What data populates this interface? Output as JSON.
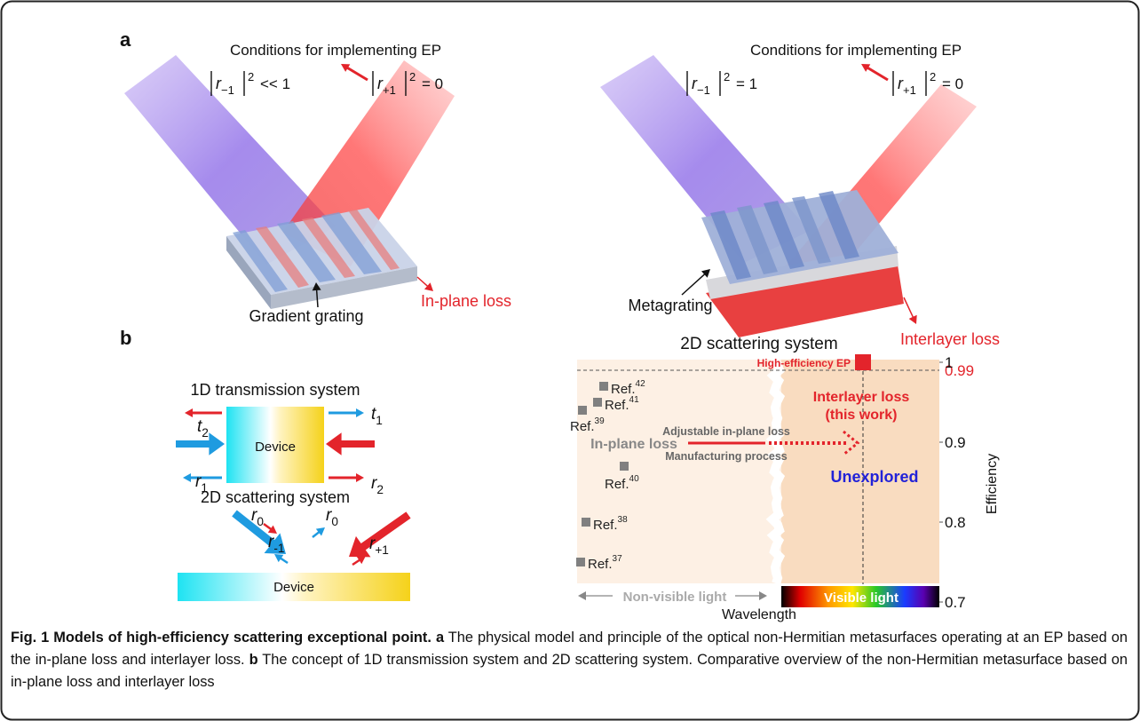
{
  "panel_a": {
    "label": "a",
    "left": {
      "heading": "Conditions for implementing EP",
      "formula_left": {
        "r": "r",
        "sub": "−1",
        "sup": "2",
        "rel": "<< 1"
      },
      "formula_right": {
        "r": "r",
        "sub": "+1",
        "sup": "2",
        "rel": "= 0"
      },
      "grating_label": "Gradient grating",
      "loss_label": "In-plane loss"
    },
    "right": {
      "heading": "Conditions for implementing EP",
      "formula_left": {
        "r": "r",
        "sub": "−1",
        "sup": "2",
        "rel": "= 1"
      },
      "formula_right": {
        "r": "r",
        "sub": "+1",
        "sup": "2",
        "rel": "= 0"
      },
      "grating_label": "Metagrating",
      "loss_label": "Interlayer loss"
    }
  },
  "panel_b": {
    "label": "b",
    "transmission": {
      "title": "1D transmission system",
      "device": "Device",
      "t2": {
        "sym": "t",
        "sub": "2"
      },
      "t1": {
        "sym": "t",
        "sub": "1"
      },
      "r1": {
        "sym": "r",
        "sub": "1"
      },
      "r2": {
        "sym": "r",
        "sub": "2"
      }
    },
    "scattering": {
      "title": "2D scattering system",
      "device": "Device",
      "r0_left": {
        "sym": "r",
        "sub": "0"
      },
      "r0_right": {
        "sym": "r",
        "sub": "0"
      },
      "r_minus": {
        "sym": "r",
        "sub": "-1"
      },
      "r_plus": {
        "sym": "r",
        "sub": "+1"
      }
    }
  },
  "chart_data": {
    "type": "scatter",
    "title": "2D scattering system",
    "y_label": "Efficiency",
    "x_label": "Wavelength",
    "ylim": [
      0.7,
      1
    ],
    "yticks": [
      0.7,
      0.8,
      0.9,
      1
    ],
    "reference_line": 0.99,
    "reference_color": "#e3242b",
    "point_color": "#808080",
    "points": [
      {
        "label": "Ref.",
        "ref": "42",
        "value": 0.97
      },
      {
        "label": "Ref.",
        "ref": "41",
        "value": 0.95
      },
      {
        "label": "Ref.",
        "ref": "39",
        "value": 0.94
      },
      {
        "label": "Ref.",
        "ref": "40",
        "value": 0.87
      },
      {
        "label": "Ref.",
        "ref": "38",
        "value": 0.8
      },
      {
        "label": "Ref.",
        "ref": "37",
        "value": 0.75
      }
    ],
    "highlight": {
      "label": "High-efficiency EP",
      "value": 1,
      "color": "#e3242b"
    },
    "annotations": {
      "in_plane": "In-plane loss",
      "adjustable": "Adjustable in-plane loss",
      "manufacturing": "Manufacturing process",
      "interlayer": "Interlayer loss",
      "this_work": "(this work)",
      "unexplored": "Unexplored",
      "non_visible": "Non-visible light",
      "visible": "Visible light"
    }
  },
  "caption": {
    "fig": "Fig. 1",
    "title": "Models of high-efficiency scattering exceptional point.",
    "a": "a",
    "a_text": "The physical model and principle of the optical non-Hermitian metasurfaces operating at an EP based on the in-plane loss and interlayer loss.",
    "b": "b",
    "b_text": "The concept of 1D transmission system and 2D scattering system. Comparative overview of the non-Hermitian metasurface based on in-plane loss and interlayer loss"
  }
}
